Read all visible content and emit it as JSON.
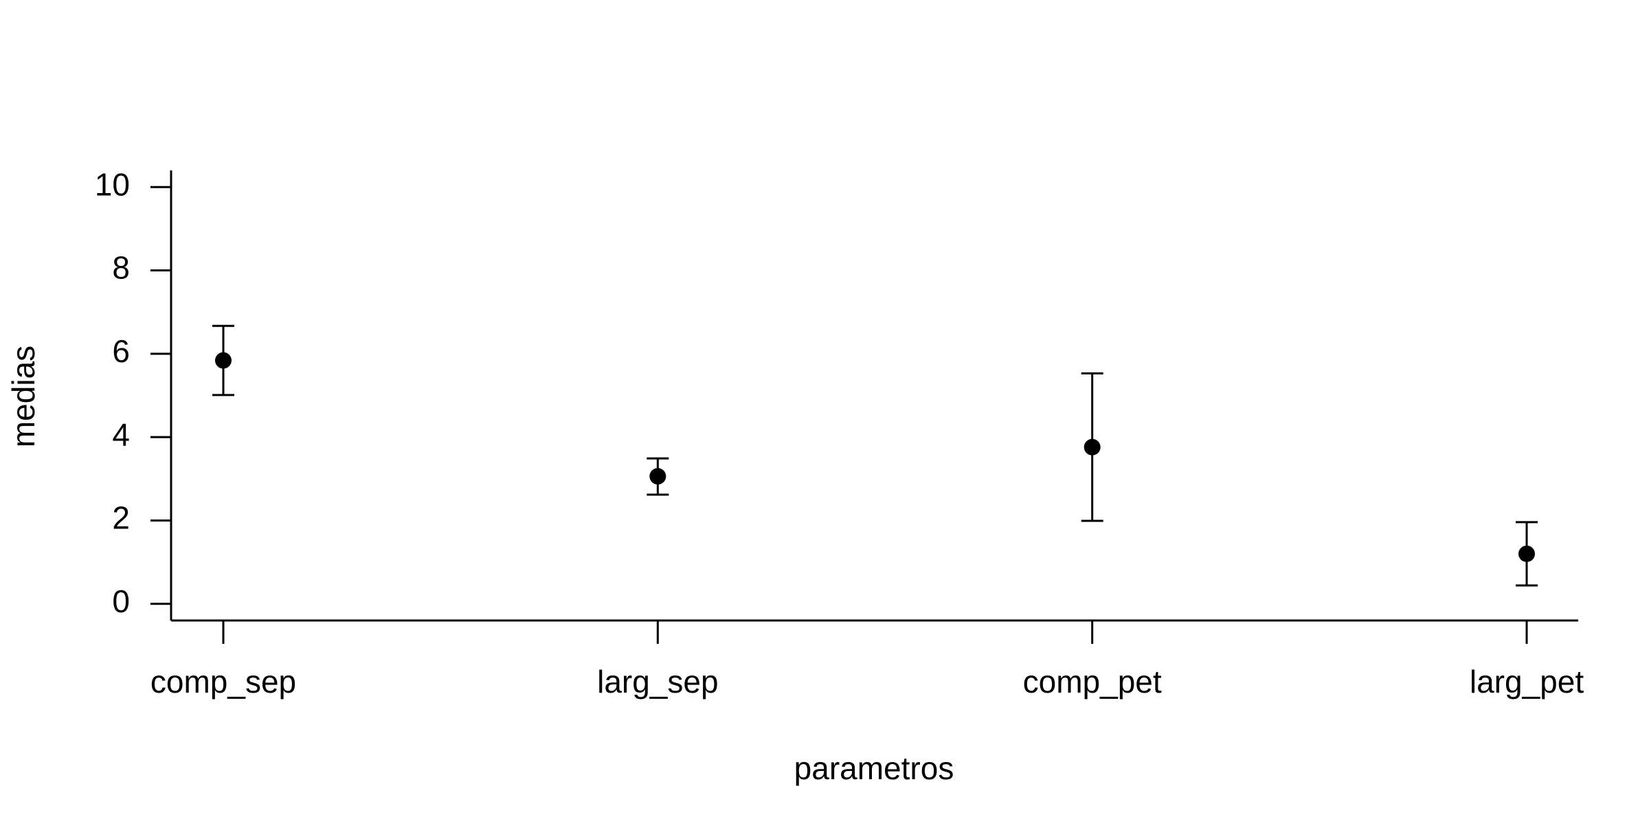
{
  "chart_data": {
    "type": "scatter",
    "title": "",
    "xlabel": "parametros",
    "ylabel": "medias",
    "categories": [
      "comp_sep",
      "larg_sep",
      "comp_pet",
      "larg_pet"
    ],
    "means": [
      5.84,
      3.06,
      3.76,
      1.2
    ],
    "lower": [
      5.01,
      2.62,
      1.99,
      0.44
    ],
    "upper": [
      6.67,
      3.49,
      5.53,
      1.96
    ],
    "y_ticks": [
      0,
      2,
      4,
      6,
      8,
      10
    ],
    "ylim": [
      -0.4,
      10.4
    ],
    "grid": false,
    "legend": "none",
    "colors": {
      "points": "#000000",
      "axes": "#000000"
    }
  }
}
